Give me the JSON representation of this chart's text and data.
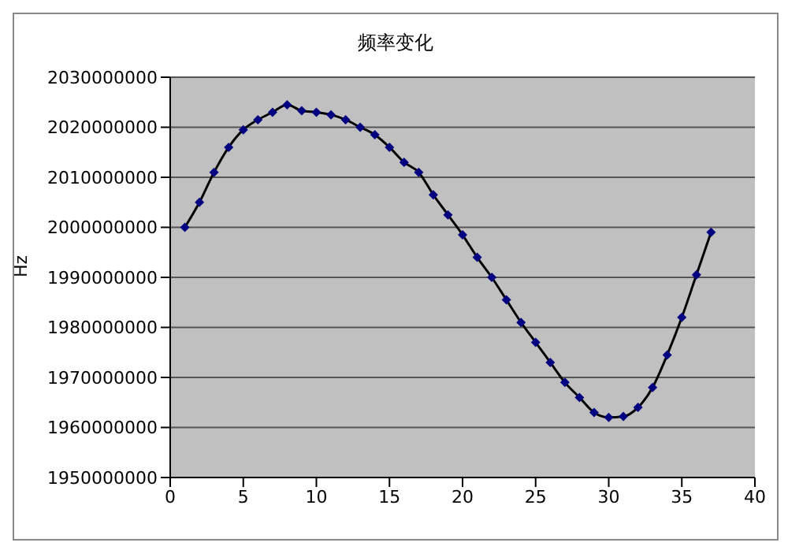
{
  "chart_data": {
    "type": "line",
    "title": "频率变化",
    "ylabel": "Hz",
    "x": [
      1,
      2,
      3,
      4,
      5,
      6,
      7,
      8,
      9,
      10,
      11,
      12,
      13,
      14,
      15,
      16,
      17,
      18,
      19,
      20,
      21,
      22,
      23,
      24,
      25,
      26,
      27,
      28,
      29,
      30,
      31,
      32,
      33,
      34,
      35,
      36,
      37
    ],
    "series": [
      {
        "color": "#000000",
        "values": [
          2000000000,
          2005000000,
          2011000000,
          2016000000,
          2019500000,
          2021500000,
          2023000000,
          2024500000,
          2023300000,
          2023000000,
          2022500000,
          2021500000,
          2020000000,
          2018500000,
          2016000000,
          2013000000,
          2011000000,
          2006500000,
          2002500000,
          1998500000,
          1994000000,
          1990000000,
          1985500000,
          1981000000,
          1977000000,
          1973000000,
          1969000000,
          1966000000,
          1963000000,
          1962000000,
          1962200000,
          1964000000,
          1968000000,
          1974500000,
          1982000000,
          1990500000,
          1999000000
        ]
      }
    ],
    "xlim": [
      0,
      40
    ],
    "xticks": [
      0,
      5,
      10,
      15,
      20,
      25,
      30,
      35,
      40
    ],
    "ylim": [
      1950000000,
      2030000000
    ],
    "yticks": [
      1950000000,
      1960000000,
      1970000000,
      1980000000,
      1990000000,
      2000000000,
      2010000000,
      2020000000,
      2030000000
    ],
    "grid": "y",
    "marker": "diamond",
    "line_style": "solid",
    "legend": false
  }
}
